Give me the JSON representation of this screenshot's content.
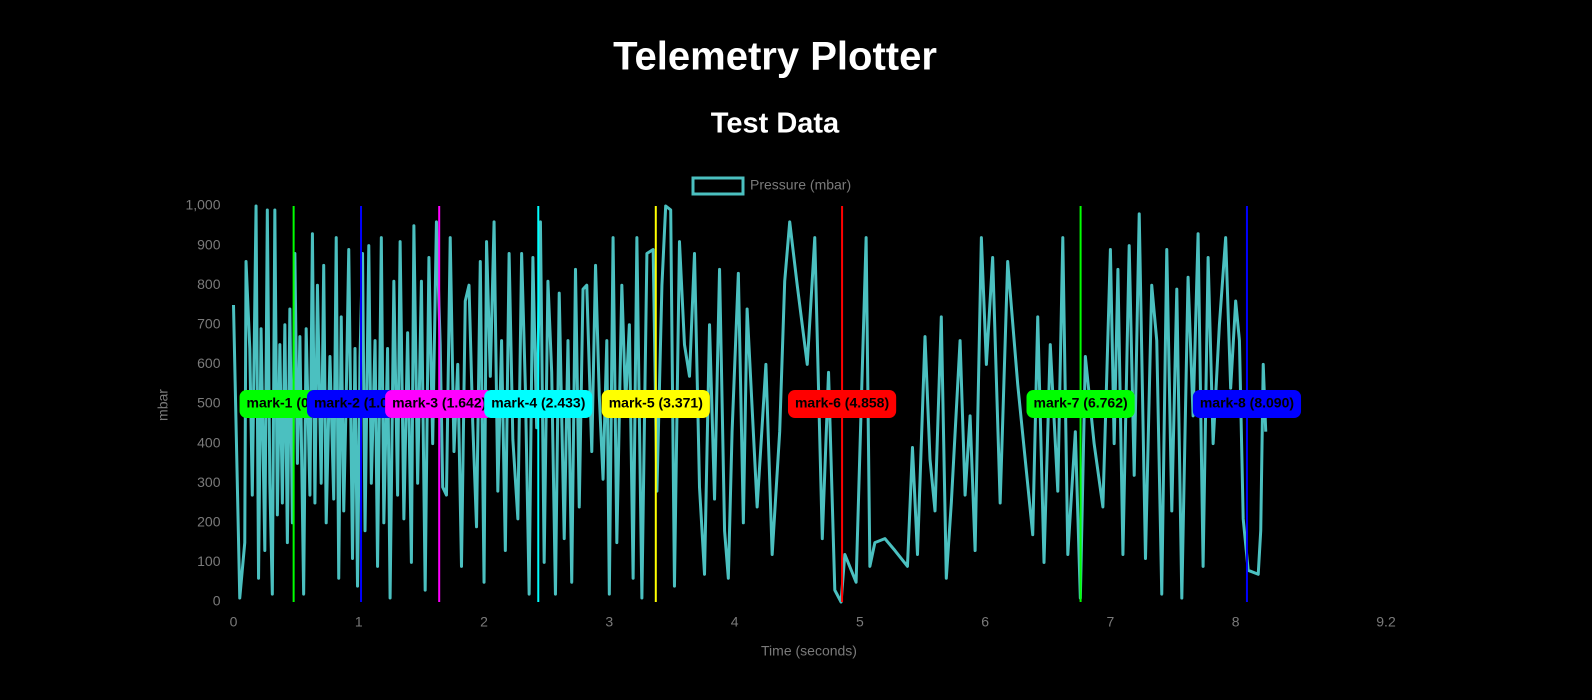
{
  "chart_data": {
    "type": "line",
    "title": "Telemetry Plotter",
    "subtitle": "Test Data",
    "x_label": "Time (seconds)",
    "y_label": "mbar",
    "xlim": [
      0,
      9.2
    ],
    "xticks": [
      0,
      1,
      2,
      3,
      4,
      5,
      6,
      7,
      8,
      9.2
    ],
    "ylim": [
      0,
      1000
    ],
    "yticks": [
      0,
      100,
      200,
      300,
      400,
      500,
      600,
      700,
      800,
      900,
      {
        "value": 1000,
        "label": "1,000"
      }
    ],
    "grid": false,
    "legend": "top",
    "x": [
      0.0,
      0.05,
      0.09,
      0.1,
      0.13,
      0.15,
      0.18,
      0.2,
      0.22,
      0.25,
      0.27,
      0.29,
      0.31,
      0.33,
      0.35,
      0.37,
      0.39,
      0.41,
      0.43,
      0.45,
      0.47,
      0.49,
      0.51,
      0.53,
      0.56,
      0.58,
      0.61,
      0.63,
      0.65,
      0.67,
      0.7,
      0.72,
      0.74,
      0.77,
      0.8,
      0.82,
      0.84,
      0.86,
      0.88,
      0.9,
      0.92,
      0.95,
      0.97,
      0.99,
      1.01,
      1.03,
      1.05,
      1.08,
      1.1,
      1.13,
      1.15,
      1.18,
      1.2,
      1.23,
      1.25,
      1.28,
      1.31,
      1.33,
      1.36,
      1.39,
      1.42,
      1.44,
      1.47,
      1.5,
      1.53,
      1.56,
      1.59,
      1.62,
      1.65,
      1.67,
      1.7,
      1.73,
      1.76,
      1.79,
      1.82,
      1.85,
      1.88,
      1.91,
      1.94,
      1.97,
      2.0,
      2.02,
      2.05,
      2.08,
      2.11,
      2.14,
      2.17,
      2.2,
      2.23,
      2.27,
      2.3,
      2.33,
      2.36,
      2.39,
      2.42,
      2.45,
      2.48,
      2.51,
      2.54,
      2.57,
      2.6,
      2.64,
      2.67,
      2.7,
      2.73,
      2.76,
      2.79,
      2.82,
      2.86,
      2.89,
      2.92,
      2.95,
      2.98,
      3.0,
      3.03,
      3.06,
      3.1,
      3.13,
      3.16,
      3.19,
      3.22,
      3.26,
      3.3,
      3.35,
      3.38,
      3.42,
      3.45,
      3.49,
      3.52,
      3.56,
      3.6,
      3.64,
      3.68,
      3.72,
      3.76,
      3.8,
      3.84,
      3.88,
      3.92,
      3.95,
      3.98,
      4.03,
      4.07,
      4.1,
      4.18,
      4.25,
      4.3,
      4.36,
      4.4,
      4.44,
      4.5,
      4.58,
      4.64,
      4.7,
      4.75,
      4.8,
      4.85,
      4.88,
      4.97,
      5.05,
      5.08,
      5.12,
      5.2,
      5.28,
      5.38,
      5.42,
      5.46,
      5.52,
      5.56,
      5.6,
      5.65,
      5.69,
      5.73,
      5.8,
      5.84,
      5.88,
      5.92,
      5.97,
      6.01,
      6.06,
      6.12,
      6.18,
      6.26,
      6.32,
      6.38,
      6.42,
      6.47,
      6.52,
      6.58,
      6.62,
      6.66,
      6.72,
      6.76,
      6.8,
      6.87,
      6.94,
      6.97,
      7.0,
      7.03,
      7.06,
      7.1,
      7.15,
      7.19,
      7.23,
      7.28,
      7.33,
      7.37,
      7.41,
      7.45,
      7.49,
      7.53,
      7.57,
      7.62,
      7.66,
      7.7,
      7.74,
      7.78,
      7.82,
      7.87,
      7.92,
      7.96,
      8.0,
      8.03,
      8.06,
      8.1,
      8.18,
      8.2,
      8.22,
      8.24
    ],
    "series": [
      {
        "name": "Pressure (mbar)",
        "color": "#4bc0c0",
        "values": [
          750,
          10,
          150,
          860,
          640,
          270,
          1000,
          60,
          690,
          130,
          990,
          300,
          20,
          990,
          220,
          650,
          250,
          700,
          150,
          740,
          200,
          880,
          350,
          670,
          20,
          690,
          270,
          930,
          250,
          800,
          300,
          850,
          200,
          620,
          260,
          920,
          60,
          720,
          230,
          520,
          890,
          110,
          640,
          40,
          620,
          880,
          180,
          900,
          300,
          660,
          90,
          920,
          200,
          640,
          10,
          810,
          270,
          910,
          210,
          680,
          100,
          950,
          300,
          810,
          30,
          870,
          400,
          960,
          650,
          290,
          270,
          920,
          380,
          600,
          90,
          760,
          800,
          450,
          190,
          860,
          50,
          910,
          570,
          960,
          280,
          660,
          130,
          880,
          410,
          210,
          880,
          540,
          20,
          870,
          440,
          960,
          100,
          810,
          580,
          20,
          780,
          160,
          660,
          50,
          840,
          240,
          790,
          800,
          380,
          850,
          520,
          310,
          660,
          20,
          920,
          150,
          800,
          500,
          700,
          60,
          920,
          10,
          880,
          890,
          280,
          800,
          1000,
          990,
          40,
          910,
          650,
          570,
          880,
          290,
          70,
          700,
          260,
          840,
          180,
          60,
          430,
          830,
          200,
          740,
          240,
          600,
          120,
          430,
          810,
          960,
          800,
          600,
          920,
          160,
          580,
          30,
          0,
          120,
          50,
          920,
          90,
          150,
          160,
          130,
          90,
          390,
          120,
          670,
          360,
          230,
          720,
          60,
          250,
          660,
          270,
          470,
          130,
          920,
          600,
          870,
          250,
          860,
          550,
          360,
          170,
          720,
          100,
          650,
          280,
          920,
          120,
          430,
          10,
          620,
          400,
          240,
          560,
          890,
          400,
          840,
          120,
          900,
          320,
          980,
          110,
          800,
          660,
          20,
          890,
          230,
          790,
          10,
          820,
          470,
          930,
          90,
          870,
          400,
          700,
          920,
          540,
          760,
          660,
          210,
          80,
          70,
          180,
          600,
          430
        ]
      }
    ],
    "annotations": [
      {
        "label": "mark-1 (0.480)",
        "x": 0.48,
        "color": "#00ff00"
      },
      {
        "label": "mark-2 (1.018)",
        "x": 1.018,
        "color": "#0000ff"
      },
      {
        "label": "mark-3 (1.642)",
        "x": 1.642,
        "color": "#ff00ff"
      },
      {
        "label": "mark-4 (2.433)",
        "x": 2.433,
        "color": "#00ffff"
      },
      {
        "label": "mark-5 (3.371)",
        "x": 3.371,
        "color": "#ffff00"
      },
      {
        "label": "mark-6 (4.858)",
        "x": 4.858,
        "color": "#ff0000"
      },
      {
        "label": "mark-7 (6.762)",
        "x": 6.762,
        "color": "#00ff00"
      },
      {
        "label": "mark-8 (8.090)",
        "x": 8.09,
        "color": "#0000ff"
      }
    ]
  }
}
